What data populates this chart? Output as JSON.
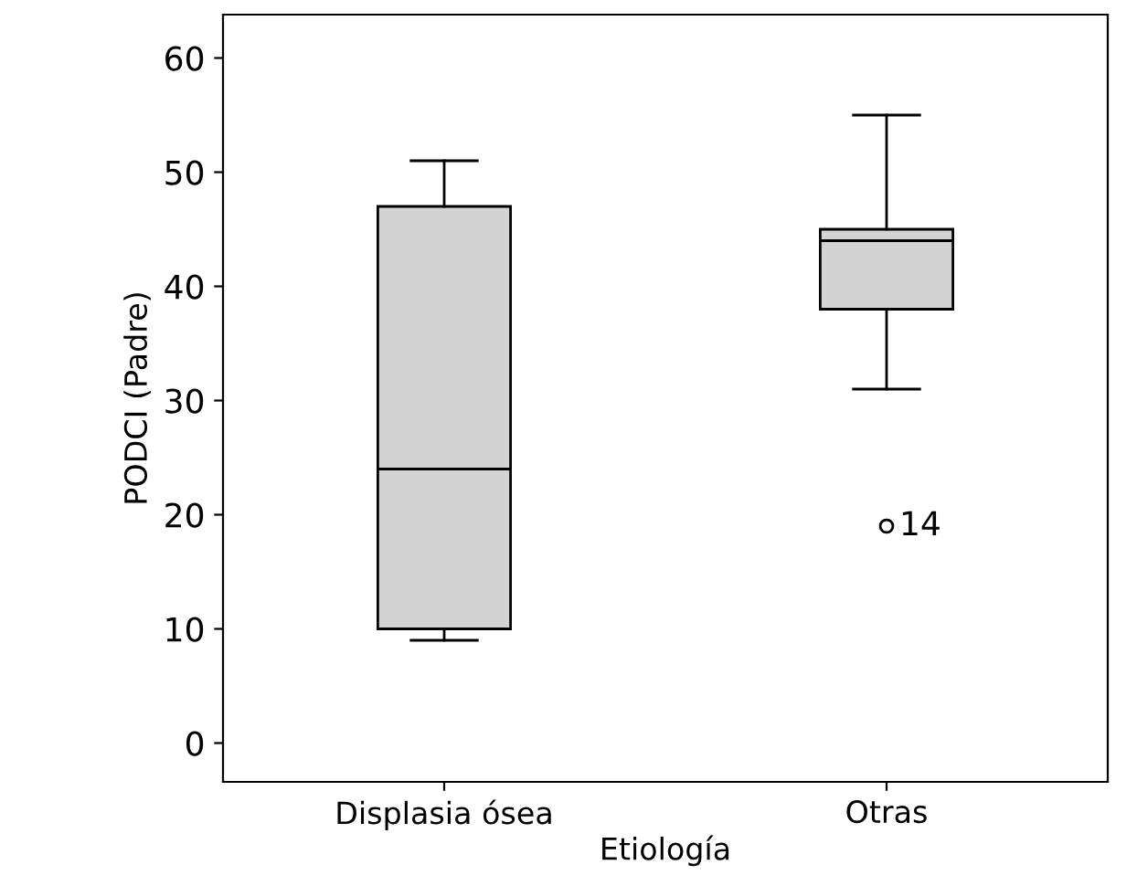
{
  "chart_data": {
    "type": "box",
    "xlabel": "Etiología",
    "ylabel": "PODCI (Padre)",
    "categories": [
      "Displasia ósea",
      "Otras"
    ],
    "boxes": [
      {
        "low": 9,
        "q1": 10,
        "median": 24,
        "q3": 47,
        "high": 51
      },
      {
        "low": 31,
        "q1": 38,
        "median": 44,
        "q3": 45,
        "high": 55,
        "outliers": [
          19
        ]
      }
    ],
    "color": "#d3d3d3",
    "ylim": [
      -3.4,
      63.8
    ],
    "yticks": [
      0,
      10,
      20,
      30,
      40,
      50,
      60
    ],
    "annotations": [
      "14"
    ],
    "grid": false
  }
}
